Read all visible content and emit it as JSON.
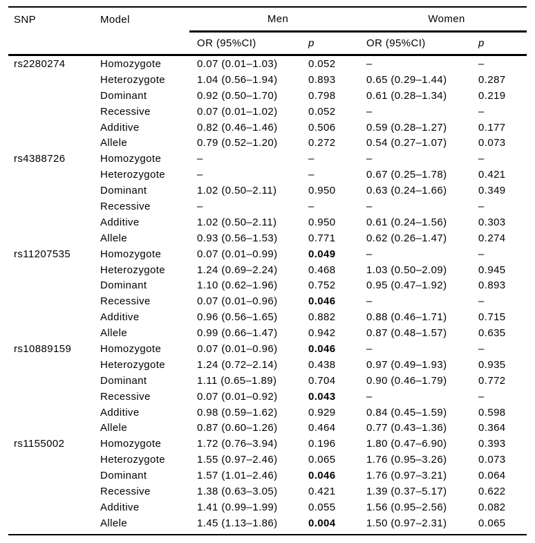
{
  "table": {
    "headers": {
      "snp": "SNP",
      "model": "Model",
      "men": "Men",
      "women": "Women",
      "or_ci": "OR (95%CI)",
      "p": "p"
    },
    "colors": {
      "text": "#000000",
      "rules": "#000000",
      "background": "#ffffff"
    },
    "groups": [
      {
        "snp": "rs2280274",
        "rows": [
          {
            "model": "Homozygote",
            "men_or": "0.07 (0.01–1.03)",
            "men_p": "0.052",
            "women_or": "–",
            "women_p": "–"
          },
          {
            "model": "Heterozygote",
            "men_or": "1.04 (0.56–1.94)",
            "men_p": "0.893",
            "women_or": "0.65 (0.29–1.44)",
            "women_p": "0.287"
          },
          {
            "model": "Dominant",
            "men_or": "0.92 (0.50–1.70)",
            "men_p": "0.798",
            "women_or": "0.61 (0.28–1.34)",
            "women_p": "0.219"
          },
          {
            "model": "Recessive",
            "men_or": "0.07 (0.01–1.02)",
            "men_p": "0.052",
            "women_or": "–",
            "women_p": "–"
          },
          {
            "model": "Additive",
            "men_or": "0.82 (0.46–1.46)",
            "men_p": "0.506",
            "women_or": "0.59 (0.28–1.27)",
            "women_p": "0.177"
          },
          {
            "model": "Allele",
            "men_or": "0.79 (0.52–1.20)",
            "men_p": "0.272",
            "women_or": "0.54 (0.27–1.07)",
            "women_p": "0.073"
          }
        ]
      },
      {
        "snp": "rs4388726",
        "rows": [
          {
            "model": "Homozygote",
            "men_or": "–",
            "men_p": "–",
            "women_or": "–",
            "women_p": "–"
          },
          {
            "model": "Heterozygote",
            "men_or": "–",
            "men_p": "–",
            "women_or": "0.67 (0.25–1.78)",
            "women_p": "0.421"
          },
          {
            "model": "Dominant",
            "men_or": "1.02 (0.50–2.11)",
            "men_p": "0.950",
            "women_or": "0.63 (0.24–1.66)",
            "women_p": "0.349"
          },
          {
            "model": "Recessive",
            "men_or": "–",
            "men_p": "–",
            "women_or": "–",
            "women_p": "–"
          },
          {
            "model": "Additive",
            "men_or": "1.02 (0.50–2.11)",
            "men_p": "0.950",
            "women_or": "0.61 (0.24–1.56)",
            "women_p": "0.303"
          },
          {
            "model": "Allele",
            "men_or": "0.93 (0.56–1.53)",
            "men_p": "0.771",
            "women_or": "0.62 (0.26–1.47)",
            "women_p": "0.274"
          }
        ]
      },
      {
        "snp": "rs11207535",
        "rows": [
          {
            "model": "Homozygote",
            "men_or": "0.07 (0.01–0.99)",
            "men_p": "0.049",
            "men_p_bold": true,
            "women_or": "–",
            "women_p": "–"
          },
          {
            "model": "Heterozygote",
            "men_or": "1.24 (0.69–2.24)",
            "men_p": "0.468",
            "women_or": "1.03 (0.50–2.09)",
            "women_p": "0.945"
          },
          {
            "model": "Dominant",
            "men_or": "1.10 (0.62–1.96)",
            "men_p": "0.752",
            "women_or": "0.95 (0.47–1.92)",
            "women_p": "0.893"
          },
          {
            "model": "Recessive",
            "men_or": "0.07 (0.01–0.96)",
            "men_p": "0.046",
            "men_p_bold": true,
            "women_or": "–",
            "women_p": "–"
          },
          {
            "model": "Additive",
            "men_or": "0.96 (0.56–1.65)",
            "men_p": "0.882",
            "women_or": "0.88 (0.46–1.71)",
            "women_p": "0.715"
          },
          {
            "model": "Allele",
            "men_or": "0.99 (0.66–1.47)",
            "men_p": "0.942",
            "women_or": "0.87 (0.48–1.57)",
            "women_p": "0.635"
          }
        ]
      },
      {
        "snp": "rs10889159",
        "rows": [
          {
            "model": "Homozygote",
            "men_or": "0.07 (0.01–0.96)",
            "men_p": "0.046",
            "men_p_bold": true,
            "women_or": "–",
            "women_p": "–"
          },
          {
            "model": "Heterozygote",
            "men_or": "1.24 (0.72–2.14)",
            "men_p": "0.438",
            "women_or": "0.97 (0.49–1.93)",
            "women_p": "0.935"
          },
          {
            "model": "Dominant",
            "men_or": "1.11 (0.65–1.89)",
            "men_p": "0.704",
            "women_or": "0.90 (0.46–1.79)",
            "women_p": "0.772"
          },
          {
            "model": "Recessive",
            "men_or": "0.07 (0.01–0.92)",
            "men_p": "0.043",
            "men_p_bold": true,
            "women_or": "–",
            "women_p": "–"
          },
          {
            "model": "Additive",
            "men_or": "0.98 (0.59–1.62)",
            "men_p": "0.929",
            "women_or": "0.84 (0.45–1.59)",
            "women_p": "0.598"
          },
          {
            "model": "Allele",
            "men_or": "0.87 (0.60–1.26)",
            "men_p": "0.464",
            "women_or": "0.77 (0.43–1.36)",
            "women_p": "0.364"
          }
        ]
      },
      {
        "snp": "rs1155002",
        "rows": [
          {
            "model": "Homozygote",
            "men_or": "1.72 (0.76–3.94)",
            "men_p": "0.196",
            "women_or": "1.80 (0.47–6.90)",
            "women_p": "0.393"
          },
          {
            "model": "Heterozygote",
            "men_or": "1.55 (0.97–2.46)",
            "men_p": "0.065",
            "women_or": "1.76 (0.95–3.26)",
            "women_p": "0.073"
          },
          {
            "model": "Dominant",
            "men_or": "1.57 (1.01–2.46)",
            "men_p": "0.046",
            "men_p_bold": true,
            "women_or": "1.76 (0.97–3.21)",
            "women_p": "0.064"
          },
          {
            "model": "Recessive",
            "men_or": "1.38 (0.63–3.05)",
            "men_p": "0.421",
            "women_or": "1.39 (0.37–5.17)",
            "women_p": "0.622"
          },
          {
            "model": "Additive",
            "men_or": "1.41 (0.99–1.99)",
            "men_p": "0.055",
            "women_or": "1.56 (0.95–2.56)",
            "women_p": "0.082"
          },
          {
            "model": "Allele",
            "men_or": "1.45 (1.13–1.86)",
            "men_p": "0.004",
            "men_p_bold": true,
            "women_or": "1.50 (0.97–2.31)",
            "women_p": "0.065"
          }
        ]
      }
    ]
  }
}
